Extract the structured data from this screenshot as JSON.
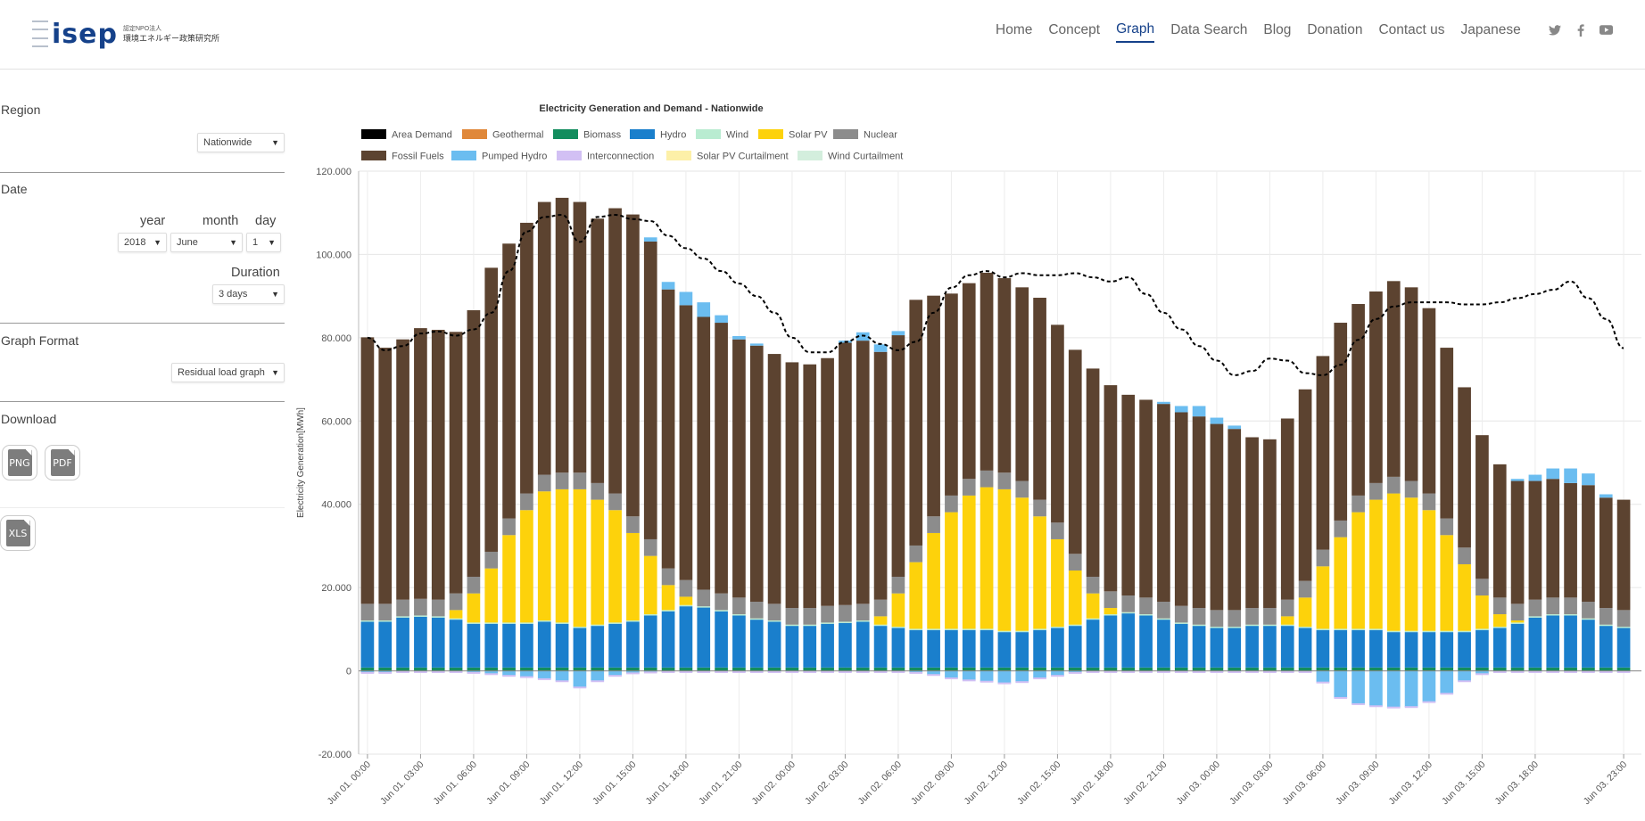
{
  "header": {
    "logo_text": "isep",
    "logo_sub1": "認定NPO法人",
    "logo_sub2": "環境エネルギー政策研究所",
    "nav": [
      "Home",
      "Concept",
      "Graph",
      "Data Search",
      "Blog",
      "Donation",
      "Contact us",
      "Japanese"
    ],
    "active_nav": "Graph",
    "social_icons": [
      "twitter-icon",
      "facebook-icon",
      "youtube-icon"
    ]
  },
  "sidebar": {
    "region_title": "Region",
    "region_value": "Nationwide",
    "date_title": "Date",
    "year_label": "year",
    "month_label": "month",
    "day_label": "day",
    "year_value": "2018",
    "month_value": "June",
    "day_value": "1",
    "duration_label": "Duration",
    "duration_value": "3 days",
    "format_title": "Graph Format",
    "format_value": "Residual load graph",
    "download_title": "Download",
    "png_label": "PNG",
    "pdf_label": "PDF",
    "xls_label": "XLS"
  },
  "colors": {
    "area_demand": "#000000",
    "geothermal": "#e0883a",
    "biomass": "#138d5e",
    "hydro": "#1a7fcc",
    "wind": "#b9ecd1",
    "solar": "#fdd20b",
    "nuclear": "#8c8c8c",
    "fossil": "#5c4330",
    "pumped": "#6bbdf0",
    "interconnection": "#d2c0f4",
    "solar_curtail": "#fdf0a8",
    "wind_curtail": "#d3eedd"
  },
  "chart_data": {
    "type": "bar",
    "title": "Electricity Generation and Demand - Nationwide",
    "ylabel": "Electricity Generation[MWh]",
    "ylim": [
      -20000,
      120000
    ],
    "y_ticks": [
      "120.000",
      "100.000",
      "80.000",
      "60.000",
      "40.000",
      "20.000",
      "0",
      "-20.000"
    ],
    "y_tick_values": [
      120000,
      100000,
      80000,
      60000,
      40000,
      20000,
      0,
      -20000
    ],
    "x_tick_labels": [
      "Jun 01. 00:00",
      "Jun 01. 03:00",
      "Jun 01. 06:00",
      "Jun 01. 09:00",
      "Jun 01. 12:00",
      "Jun 01. 15:00",
      "Jun 01. 18:00",
      "Jun 01. 21:00",
      "Jun 02. 00:00",
      "Jun 02. 03:00",
      "Jun 02. 06:00",
      "Jun 02. 09:00",
      "Jun 02. 12:00",
      "Jun 02. 15:00",
      "Jun 02. 18:00",
      "Jun 02. 21:00",
      "Jun 03. 00:00",
      "Jun 03. 03:00",
      "Jun 03. 06:00",
      "Jun 03. 09:00",
      "Jun 03. 12:00",
      "Jun 03. 15:00",
      "Jun 03. 18:00",
      "Jun 03. 23:00"
    ],
    "x_tick_indices": [
      0,
      3,
      6,
      9,
      12,
      15,
      18,
      21,
      24,
      27,
      30,
      33,
      36,
      39,
      42,
      45,
      48,
      51,
      54,
      57,
      60,
      63,
      66,
      71
    ],
    "legend": [
      "Area Demand",
      "Geothermal",
      "Biomass",
      "Hydro",
      "Wind",
      "Solar PV",
      "Nuclear",
      "Fossil Fuels",
      "Pumped Hydro",
      "Interconnection",
      "Solar PV Curtailment",
      "Wind Curtailment"
    ],
    "grid": true,
    "series": [
      {
        "name": "Hydro",
        "values": [
          11000,
          11000,
          12000,
          12200,
          12000,
          11500,
          10500,
          10500,
          10500,
          10500,
          11000,
          10500,
          9500,
          10000,
          10500,
          11000,
          12500,
          13500,
          14700,
          14400,
          13500,
          12500,
          11500,
          11000,
          10000,
          10000,
          10500,
          10700,
          11000,
          10000,
          9500,
          9000,
          9000,
          9000,
          9000,
          9000,
          8500,
          8500,
          9000,
          9500,
          10000,
          11500,
          12500,
          13000,
          12500,
          11500,
          10500,
          10000,
          9500,
          9500,
          10000,
          10000,
          10000,
          9500,
          9000,
          9000,
          9000,
          9000,
          8500,
          8500,
          8500,
          8500,
          8500,
          9000,
          9500,
          10500,
          12000,
          12500,
          12500,
          11500,
          10000,
          9500
        ]
      },
      {
        "name": "Biomass",
        "values": [
          800,
          800,
          800,
          800,
          800,
          800,
          800,
          800,
          800,
          800,
          800,
          800,
          800,
          800,
          800,
          800,
          800,
          800,
          800,
          800,
          800,
          800,
          800,
          800,
          800,
          800,
          800,
          800,
          800,
          800,
          800,
          800,
          800,
          800,
          800,
          800,
          800,
          800,
          800,
          800,
          800,
          800,
          800,
          800,
          800,
          800,
          800,
          800,
          800,
          800,
          800,
          800,
          800,
          800,
          800,
          800,
          800,
          800,
          800,
          800,
          800,
          800,
          800,
          800,
          800,
          800,
          800,
          800,
          800,
          800,
          800,
          800
        ]
      },
      {
        "name": "Solar PV",
        "values": [
          0,
          0,
          0,
          0,
          0,
          2000,
          7000,
          13000,
          21000,
          27000,
          31000,
          32000,
          33000,
          30000,
          27000,
          21000,
          14000,
          6000,
          2000,
          0,
          0,
          0,
          0,
          0,
          0,
          0,
          0,
          0,
          0,
          2000,
          8000,
          16000,
          23000,
          28000,
          32000,
          34000,
          34000,
          32000,
          27000,
          21000,
          13000,
          6000,
          1500,
          0,
          0,
          0,
          0,
          0,
          0,
          0,
          0,
          0,
          2000,
          7000,
          15000,
          22000,
          28000,
          31000,
          33000,
          32000,
          29000,
          23000,
          16000,
          8000,
          3000,
          500,
          0,
          0,
          0,
          0,
          0,
          0
        ]
      },
      {
        "name": "Nuclear",
        "values": [
          4000,
          4000,
          4000,
          4000,
          4000,
          4000,
          4000,
          4000,
          4000,
          4000,
          4000,
          4000,
          4000,
          4000,
          4000,
          4000,
          4000,
          4000,
          4000,
          4000,
          4000,
          4000,
          4000,
          4000,
          4000,
          4000,
          4000,
          4000,
          4000,
          4000,
          4000,
          4000,
          4000,
          4000,
          4000,
          4000,
          4000,
          4000,
          4000,
          4000,
          4000,
          4000,
          4000,
          4000,
          4000,
          4000,
          4000,
          4000,
          4000,
          4000,
          4000,
          4000,
          4000,
          4000,
          4000,
          4000,
          4000,
          4000,
          4000,
          4000,
          4000,
          4000,
          4000,
          4000,
          4000,
          4000,
          4000,
          4000,
          4000,
          4000,
          4000,
          4000
        ]
      },
      {
        "name": "Fossil Fuels",
        "values": [
          64000,
          61500,
          62500,
          65000,
          64800,
          62800,
          64000,
          68200,
          66000,
          65000,
          65500,
          66000,
          65000,
          63500,
          68500,
          72500,
          71500,
          67000,
          66000,
          65500,
          65000,
          62000,
          61500,
          60000,
          59000,
          58500,
          59500,
          63000,
          63200,
          59500,
          58000,
          59000,
          53000,
          48500,
          47000,
          47500,
          46700,
          46500,
          48500,
          47500,
          49000,
          50000,
          49500,
          48200,
          47500,
          47500,
          46500,
          46000,
          44700,
          43500,
          41000,
          40500,
          43500,
          46000,
          46500,
          47500,
          46000,
          46000,
          47000,
          46500,
          44500,
          41000,
          38500,
          34500,
          32000,
          29500,
          28500,
          28500,
          27500,
          28000,
          26500,
          26500
        ]
      },
      {
        "name": "Pumped Hydro",
        "values": [
          0,
          0,
          0,
          0,
          0,
          0,
          0,
          0,
          0,
          0,
          0,
          0,
          0,
          0,
          0,
          0,
          1000,
          1800,
          3200,
          3500,
          1800,
          800,
          500,
          0,
          0,
          0,
          0,
          500,
          2000,
          1800,
          1000,
          0,
          0,
          0,
          0,
          0,
          0,
          0,
          0,
          0,
          0,
          0,
          0,
          0,
          0,
          500,
          1500,
          2500,
          1500,
          800,
          0,
          0,
          0,
          0,
          0,
          0,
          0,
          0,
          0,
          0,
          0,
          0,
          0,
          0,
          0,
          500,
          1500,
          2500,
          3500,
          2800,
          800,
          0
        ]
      },
      {
        "name": "Pumped Hydro (negative)",
        "values": [
          -500,
          -500,
          -300,
          -300,
          -300,
          -300,
          -500,
          -800,
          -1200,
          -1500,
          -2000,
          -2500,
          -4000,
          -2500,
          -1200,
          -600,
          -400,
          -300,
          -300,
          -300,
          -300,
          -300,
          -300,
          -300,
          -300,
          -300,
          -300,
          -300,
          -300,
          -300,
          -300,
          -500,
          -1000,
          -1800,
          -2300,
          -2600,
          -3000,
          -2700,
          -1800,
          -1200,
          -500,
          -300,
          -300,
          -300,
          -300,
          -300,
          -300,
          -300,
          -300,
          -300,
          -300,
          -300,
          -300,
          -300,
          -2800,
          -6500,
          -8000,
          -8500,
          -8800,
          -8700,
          -7500,
          -5500,
          -2500,
          -800,
          -300,
          -300,
          -300,
          -300,
          -300,
          -300,
          -300,
          -300
        ]
      },
      {
        "name": "Area Demand",
        "values": [
          80000,
          77000,
          78000,
          81000,
          81500,
          80500,
          82000,
          86000,
          96000,
          105500,
          109000,
          109500,
          103000,
          109000,
          109500,
          108500,
          108000,
          104500,
          101500,
          99000,
          96000,
          93000,
          90000,
          86000,
          80000,
          76500,
          76500,
          79000,
          80500,
          78500,
          77000,
          79000,
          86000,
          92000,
          95000,
          96000,
          94500,
          95500,
          95000,
          95000,
          95500,
          94500,
          93500,
          94500,
          90500,
          86000,
          82000,
          78000,
          74500,
          71000,
          72000,
          75000,
          74500,
          71500,
          71000,
          73500,
          79500,
          84500,
          87500,
          88500,
          88500,
          88500,
          88000,
          88000,
          88500,
          89500,
          90500,
          91500,
          93500,
          89500,
          84500,
          77500
        ]
      }
    ]
  }
}
